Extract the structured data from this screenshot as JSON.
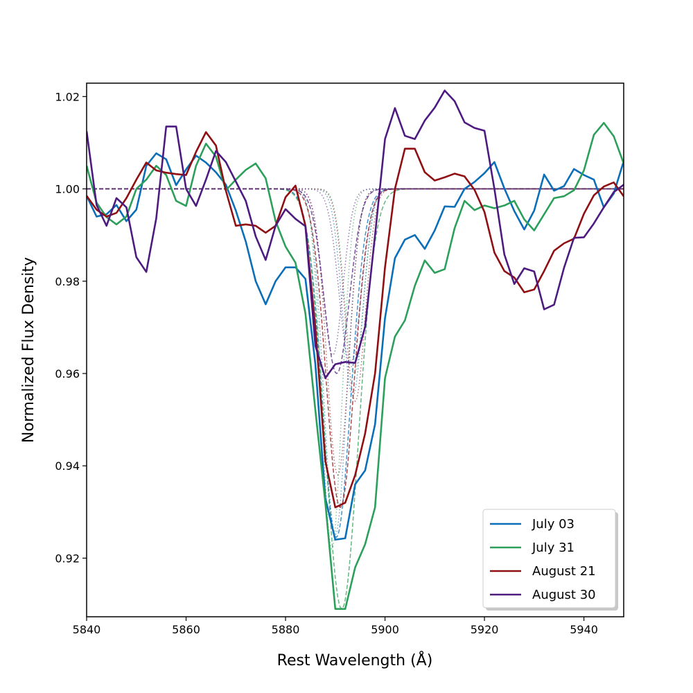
{
  "chart_data": {
    "type": "line",
    "title": "",
    "xlabel": "Rest Wavelength (Å)",
    "ylabel": "Normalized Flux Density",
    "xlim": [
      5840,
      5948
    ],
    "ylim": [
      0.9073,
      1.0229
    ],
    "xticks": [
      5840,
      5860,
      5880,
      5900,
      5920,
      5940
    ],
    "xtick_labels": [
      "5840",
      "5860",
      "5880",
      "5900",
      "5920",
      "5940"
    ],
    "yticks": [
      0.92,
      0.94,
      0.96,
      0.98,
      1.0,
      1.02
    ],
    "ytick_labels": [
      "0.92",
      "0.94",
      "0.96",
      "0.98",
      "1.00",
      "1.02"
    ],
    "legend_position": "lower-right",
    "series": [
      {
        "name": "July 03",
        "color": "#0a6eb8",
        "x": [
          5840,
          5842,
          5844,
          5846,
          5848,
          5850,
          5852,
          5854,
          5856,
          5858,
          5860,
          5862,
          5864,
          5866,
          5868,
          5870,
          5872,
          5874,
          5876,
          5878,
          5880,
          5882,
          5884,
          5886,
          5888,
          5890,
          5892,
          5894,
          5896,
          5898,
          5900,
          5902,
          5904,
          5906,
          5908,
          5910,
          5912,
          5914,
          5916,
          5918,
          5920,
          5922,
          5924,
          5926,
          5928,
          5930,
          5932,
          5934,
          5936,
          5938,
          5940,
          5942,
          5944,
          5946,
          5948
        ],
        "values": [
          0.9985,
          0.994,
          0.9945,
          0.9965,
          0.993,
          0.9955,
          1.005,
          1.0077,
          1.0064,
          1.0008,
          1.0042,
          1.0072,
          1.0057,
          1.0036,
          1.0009,
          0.9953,
          0.9886,
          0.98,
          0.975,
          0.98,
          0.983,
          0.983,
          0.9805,
          0.962,
          0.933,
          0.924,
          0.9243,
          0.936,
          0.939,
          0.949,
          0.972,
          0.985,
          0.989,
          0.99,
          0.987,
          0.991,
          0.9962,
          0.9961,
          1.0,
          1.0015,
          1.0034,
          1.0058,
          1.0001,
          0.9952,
          0.9912,
          0.9953,
          1.0031,
          0.9996,
          1.0006,
          1.0043,
          1.003,
          1.002,
          0.996,
          0.999,
          1.006
        ]
      },
      {
        "name": "July 31",
        "color": "#2ca05a",
        "x": [
          5840,
          5842,
          5844,
          5846,
          5848,
          5850,
          5852,
          5854,
          5856,
          5858,
          5860,
          5862,
          5864,
          5866,
          5868,
          5870,
          5872,
          5874,
          5876,
          5878,
          5880,
          5882,
          5884,
          5886,
          5888,
          5890,
          5892,
          5894,
          5896,
          5898,
          5900,
          5902,
          5904,
          5906,
          5908,
          5910,
          5912,
          5914,
          5916,
          5918,
          5920,
          5922,
          5924,
          5926,
          5928,
          5930,
          5932,
          5934,
          5936,
          5938,
          5940,
          5942,
          5944,
          5946,
          5948
        ],
        "values": [
          1.005,
          0.997,
          0.9939,
          0.9923,
          0.994,
          1.0,
          1.002,
          1.005,
          1.003,
          0.9974,
          0.9963,
          1.005,
          1.0098,
          1.007,
          0.9997,
          1.002,
          1.0041,
          1.0055,
          1.0023,
          0.993,
          0.9875,
          0.984,
          0.973,
          0.952,
          0.932,
          0.909,
          0.909,
          0.918,
          0.923,
          0.931,
          0.959,
          0.968,
          0.9715,
          0.979,
          0.9845,
          0.9818,
          0.9826,
          0.9915,
          0.9974,
          0.9954,
          0.9964,
          0.9958,
          0.9964,
          0.9974,
          0.9934,
          0.991,
          0.9945,
          0.998,
          0.9984,
          0.9997,
          1.004,
          1.0117,
          1.0143,
          1.0114,
          1.0055
        ]
      },
      {
        "name": "August 21",
        "color": "#8f0f12",
        "x": [
          5840,
          5842,
          5844,
          5846,
          5848,
          5850,
          5852,
          5854,
          5856,
          5858,
          5860,
          5862,
          5864,
          5866,
          5868,
          5870,
          5872,
          5874,
          5876,
          5878,
          5880,
          5882,
          5884,
          5886,
          5888,
          5890,
          5892,
          5894,
          5896,
          5898,
          5900,
          5902,
          5904,
          5906,
          5908,
          5910,
          5912,
          5914,
          5916,
          5918,
          5920,
          5922,
          5924,
          5926,
          5928,
          5930,
          5932,
          5934,
          5936,
          5938,
          5940,
          5942,
          5944,
          5946,
          5948
        ],
        "values": [
          0.9985,
          0.9955,
          0.994,
          0.9948,
          0.998,
          1.002,
          1.0057,
          1.004,
          1.0035,
          1.0032,
          1.003,
          1.008,
          1.0123,
          1.0094,
          0.9996,
          0.992,
          0.9923,
          0.992,
          0.9905,
          0.992,
          0.9982,
          1.0007,
          0.992,
          0.97,
          0.941,
          0.931,
          0.932,
          0.938,
          0.947,
          0.96,
          0.983,
          1.0,
          1.0087,
          1.0087,
          1.0036,
          1.0018,
          1.0025,
          1.0033,
          1.0027,
          0.9998,
          0.995,
          0.9862,
          0.9822,
          0.9808,
          0.9776,
          0.9782,
          0.9822,
          0.9866,
          0.9882,
          0.9892,
          0.9946,
          0.9986,
          1.0005,
          1.0014,
          0.9984
        ]
      },
      {
        "name": "August 30",
        "color": "#4d1a80",
        "x": [
          5840,
          5842,
          5844,
          5846,
          5848,
          5850,
          5852,
          5854,
          5856,
          5858,
          5860,
          5862,
          5864,
          5866,
          5868,
          5870,
          5872,
          5874,
          5876,
          5878,
          5880,
          5882,
          5884,
          5886,
          5888,
          5890,
          5892,
          5894,
          5896,
          5898,
          5900,
          5902,
          5904,
          5906,
          5908,
          5910,
          5912,
          5914,
          5916,
          5918,
          5920,
          5922,
          5924,
          5926,
          5928,
          5930,
          5932,
          5934,
          5936,
          5938,
          5940,
          5942,
          5944,
          5946,
          5948
        ],
        "values": [
          1.0125,
          0.9965,
          0.992,
          0.998,
          0.996,
          0.9852,
          0.982,
          0.9936,
          1.0135,
          1.0135,
          1.0,
          0.9963,
          1.002,
          1.0082,
          1.0058,
          1.0016,
          0.9974,
          0.9897,
          0.9846,
          0.992,
          0.9956,
          0.9935,
          0.9919,
          0.966,
          0.959,
          0.962,
          0.9625,
          0.9623,
          0.9701,
          0.99,
          1.0108,
          1.0175,
          1.0115,
          1.0108,
          1.0148,
          1.0176,
          1.0213,
          1.019,
          1.0144,
          1.0132,
          1.0126,
          1.0,
          0.9858,
          0.9794,
          0.9828,
          0.9821,
          0.9739,
          0.9749,
          0.9829,
          0.9894,
          0.9895,
          0.9925,
          0.996,
          0.9993,
          1.0009
        ]
      }
    ],
    "model_fits": [
      {
        "series": "July 03",
        "color": "#0a6eb8",
        "components": [
          {
            "center": 5890.2,
            "depth": 0.0755,
            "sigma": 2.9,
            "style": "dashed"
          },
          {
            "center": 5890.0,
            "depth": 0.075,
            "sigma": 2.3,
            "style": "dotted"
          },
          {
            "center": 5893.5,
            "depth": 0.045,
            "sigma": 2.0,
            "style": "dotted"
          }
        ]
      },
      {
        "series": "July 31",
        "color": "#2ca05a",
        "components": [
          {
            "center": 5891.3,
            "depth": 0.091,
            "sigma": 3.3,
            "style": "dashed"
          },
          {
            "center": 5889.3,
            "depth": 0.078,
            "sigma": 2.0,
            "style": "dotted"
          },
          {
            "center": 5893.8,
            "depth": 0.04,
            "sigma": 1.9,
            "style": "dotted"
          }
        ]
      },
      {
        "series": "August 21",
        "color": "#8f0f12",
        "components": [
          {
            "center": 5891.0,
            "depth": 0.069,
            "sigma": 2.8,
            "style": "dashed"
          },
          {
            "center": 5890.5,
            "depth": 0.062,
            "sigma": 2.2,
            "style": "dotted"
          },
          {
            "center": 5894.0,
            "depth": 0.046,
            "sigma": 2.0,
            "style": "dotted"
          }
        ]
      },
      {
        "series": "August 30",
        "color": "#4d1a80",
        "components": [
          {
            "center": 5890.3,
            "depth": 0.04,
            "sigma": 2.5,
            "style": "dashed"
          },
          {
            "center": 5889.5,
            "depth": 0.036,
            "sigma": 2.0,
            "style": "dotted"
          },
          {
            "center": 5893.0,
            "depth": 0.038,
            "sigma": 2.2,
            "style": "dotted"
          }
        ]
      }
    ]
  }
}
